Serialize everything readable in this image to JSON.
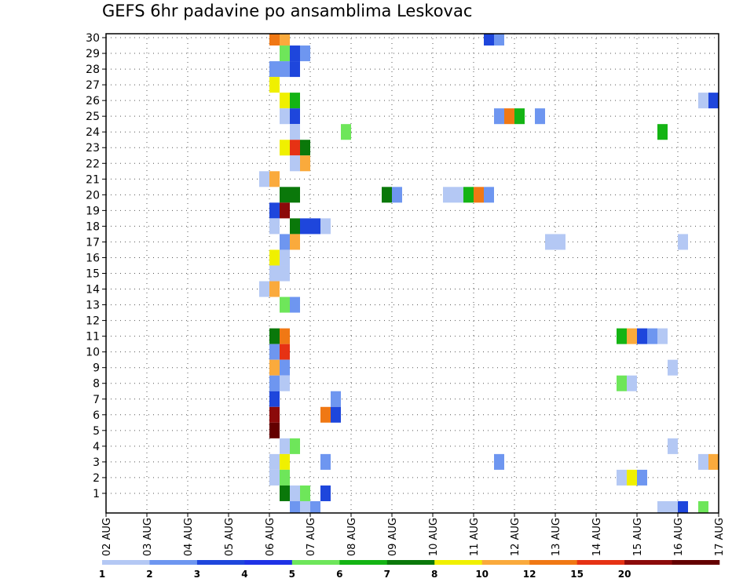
{
  "chart_data": {
    "type": "heatmap",
    "title": "GEFS 6hr padavine po ansamblima Leskovac",
    "xlabel": "",
    "ylabel": "",
    "x_ticks": [
      "02 AUG",
      "03 AUG",
      "04 AUG",
      "05 AUG",
      "06 AUG",
      "07 AUG",
      "08 AUG",
      "09 AUG",
      "10 AUG",
      "11 AUG",
      "12 AUG",
      "13 AUG",
      "14 AUG",
      "15 AUG",
      "16 AUG",
      "17 AUG"
    ],
    "x_unit": "6-hour step",
    "x_start": "02 AUG 00Z",
    "y_ticks": [
      1,
      2,
      3,
      4,
      5,
      6,
      7,
      8,
      9,
      10,
      11,
      12,
      13,
      14,
      15,
      16,
      17,
      18,
      19,
      20,
      21,
      22,
      23,
      24,
      25,
      26,
      27,
      28,
      29,
      30
    ],
    "ylim": [
      0,
      30
    ],
    "grid": true,
    "legend_position": "bottom",
    "colorbar": {
      "labels": [
        "1",
        "2",
        "3",
        "4",
        "5",
        "6",
        "7",
        "8",
        "10",
        "12",
        "15",
        "20"
      ],
      "colors": [
        "#b4c8f4",
        "#6e96f0",
        "#1e46dc",
        "#1e32e6",
        "#6ee65a",
        "#14b414",
        "#0a780a",
        "#f0f000",
        "#faaa3c",
        "#f07814",
        "#e63214",
        "#8c0a0a",
        "#640000"
      ]
    },
    "cells": [
      {
        "m": 30,
        "s": 16,
        "c": "#f07814"
      },
      {
        "m": 30,
        "s": 17,
        "c": "#faaa3c"
      },
      {
        "m": 30,
        "s": 37,
        "c": "#1e46dc"
      },
      {
        "m": 30,
        "s": 38,
        "c": "#6e96f0"
      },
      {
        "m": 29,
        "s": 17,
        "c": "#6ee65a"
      },
      {
        "m": 29,
        "s": 18,
        "c": "#1e46dc"
      },
      {
        "m": 29,
        "s": 19,
        "c": "#6e96f0"
      },
      {
        "m": 28,
        "s": 16,
        "c": "#6e96f0"
      },
      {
        "m": 28,
        "s": 17,
        "c": "#6e96f0"
      },
      {
        "m": 28,
        "s": 18,
        "c": "#1e46dc"
      },
      {
        "m": 27,
        "s": 16,
        "c": "#f0f000"
      },
      {
        "m": 26,
        "s": 17,
        "c": "#f0f000"
      },
      {
        "m": 26,
        "s": 18,
        "c": "#14b414"
      },
      {
        "m": 26,
        "s": 58,
        "c": "#b4c8f4"
      },
      {
        "m": 26,
        "s": 59,
        "c": "#1e46dc"
      },
      {
        "m": 25,
        "s": 17,
        "c": "#b4c8f4"
      },
      {
        "m": 25,
        "s": 18,
        "c": "#1e46dc"
      },
      {
        "m": 25,
        "s": 38,
        "c": "#6e96f0"
      },
      {
        "m": 25,
        "s": 39,
        "c": "#f07814"
      },
      {
        "m": 25,
        "s": 40,
        "c": "#14b414"
      },
      {
        "m": 25,
        "s": 42,
        "c": "#6e96f0"
      },
      {
        "m": 24,
        "s": 18,
        "c": "#b4c8f4"
      },
      {
        "m": 24,
        "s": 23,
        "c": "#6ee65a"
      },
      {
        "m": 24,
        "s": 54,
        "c": "#14b414"
      },
      {
        "m": 23,
        "s": 17,
        "c": "#f0f000"
      },
      {
        "m": 23,
        "s": 18,
        "c": "#e63214"
      },
      {
        "m": 23,
        "s": 19,
        "c": "#0a780a"
      },
      {
        "m": 22,
        "s": 18,
        "c": "#b4c8f4"
      },
      {
        "m": 22,
        "s": 19,
        "c": "#faaa3c"
      },
      {
        "m": 21,
        "s": 15,
        "c": "#b4c8f4"
      },
      {
        "m": 21,
        "s": 16,
        "c": "#faaa3c"
      },
      {
        "m": 20,
        "s": 17,
        "c": "#0a780a"
      },
      {
        "m": 20,
        "s": 18,
        "c": "#0a780a"
      },
      {
        "m": 20,
        "s": 27,
        "c": "#0a780a"
      },
      {
        "m": 20,
        "s": 28,
        "c": "#6e96f0"
      },
      {
        "m": 20,
        "s": 33,
        "c": "#b4c8f4"
      },
      {
        "m": 20,
        "s": 34,
        "c": "#b4c8f4"
      },
      {
        "m": 20,
        "s": 35,
        "c": "#14b414"
      },
      {
        "m": 20,
        "s": 36,
        "c": "#f07814"
      },
      {
        "m": 20,
        "s": 37,
        "c": "#6e96f0"
      },
      {
        "m": 19,
        "s": 16,
        "c": "#1e46dc"
      },
      {
        "m": 19,
        "s": 17,
        "c": "#8c0a0a"
      },
      {
        "m": 18,
        "s": 16,
        "c": "#b4c8f4"
      },
      {
        "m": 18,
        "s": 18,
        "c": "#0a780a"
      },
      {
        "m": 18,
        "s": 19,
        "c": "#1e46dc"
      },
      {
        "m": 18,
        "s": 20,
        "c": "#1e46dc"
      },
      {
        "m": 18,
        "s": 21,
        "c": "#b4c8f4"
      },
      {
        "m": 17,
        "s": 17,
        "c": "#6e96f0"
      },
      {
        "m": 17,
        "s": 18,
        "c": "#faaa3c"
      },
      {
        "m": 17,
        "s": 43,
        "c": "#b4c8f4"
      },
      {
        "m": 17,
        "s": 44,
        "c": "#b4c8f4"
      },
      {
        "m": 17,
        "s": 56,
        "c": "#b4c8f4"
      },
      {
        "m": 16,
        "s": 16,
        "c": "#f0f000"
      },
      {
        "m": 16,
        "s": 17,
        "c": "#b4c8f4"
      },
      {
        "m": 15,
        "s": 16,
        "c": "#b4c8f4"
      },
      {
        "m": 15,
        "s": 17,
        "c": "#b4c8f4"
      },
      {
        "m": 14,
        "s": 15,
        "c": "#b4c8f4"
      },
      {
        "m": 14,
        "s": 16,
        "c": "#faaa3c"
      },
      {
        "m": 13,
        "s": 17,
        "c": "#6ee65a"
      },
      {
        "m": 13,
        "s": 18,
        "c": "#6e96f0"
      },
      {
        "m": 11,
        "s": 16,
        "c": "#0a780a"
      },
      {
        "m": 11,
        "s": 17,
        "c": "#f07814"
      },
      {
        "m": 11,
        "s": 50,
        "c": "#14b414"
      },
      {
        "m": 11,
        "s": 51,
        "c": "#faaa3c"
      },
      {
        "m": 11,
        "s": 52,
        "c": "#1e46dc"
      },
      {
        "m": 11,
        "s": 53,
        "c": "#6e96f0"
      },
      {
        "m": 11,
        "s": 54,
        "c": "#b4c8f4"
      },
      {
        "m": 10,
        "s": 16,
        "c": "#6e96f0"
      },
      {
        "m": 10,
        "s": 17,
        "c": "#e63214"
      },
      {
        "m": 9,
        "s": 16,
        "c": "#faaa3c"
      },
      {
        "m": 9,
        "s": 17,
        "c": "#6e96f0"
      },
      {
        "m": 9,
        "s": 55,
        "c": "#b4c8f4"
      },
      {
        "m": 8,
        "s": 16,
        "c": "#6e96f0"
      },
      {
        "m": 8,
        "s": 17,
        "c": "#b4c8f4"
      },
      {
        "m": 8,
        "s": 50,
        "c": "#6ee65a"
      },
      {
        "m": 8,
        "s": 51,
        "c": "#b4c8f4"
      },
      {
        "m": 7,
        "s": 16,
        "c": "#1e46dc"
      },
      {
        "m": 7,
        "s": 22,
        "c": "#6e96f0"
      },
      {
        "m": 6,
        "s": 16,
        "c": "#8c0a0a"
      },
      {
        "m": 6,
        "s": 21,
        "c": "#f07814"
      },
      {
        "m": 6,
        "s": 22,
        "c": "#1e46dc"
      },
      {
        "m": 5,
        "s": 16,
        "c": "#640000"
      },
      {
        "m": 4,
        "s": 17,
        "c": "#b4c8f4"
      },
      {
        "m": 4,
        "s": 18,
        "c": "#6ee65a"
      },
      {
        "m": 4,
        "s": 55,
        "c": "#b4c8f4"
      },
      {
        "m": 3,
        "s": 16,
        "c": "#b4c8f4"
      },
      {
        "m": 3,
        "s": 17,
        "c": "#f0f000"
      },
      {
        "m": 3,
        "s": 21,
        "c": "#6e96f0"
      },
      {
        "m": 3,
        "s": 38,
        "c": "#6e96f0"
      },
      {
        "m": 3,
        "s": 58,
        "c": "#b4c8f4"
      },
      {
        "m": 3,
        "s": 59,
        "c": "#faaa3c"
      },
      {
        "m": 2,
        "s": 16,
        "c": "#b4c8f4"
      },
      {
        "m": 2,
        "s": 17,
        "c": "#6ee65a"
      },
      {
        "m": 2,
        "s": 50,
        "c": "#b4c8f4"
      },
      {
        "m": 2,
        "s": 51,
        "c": "#f0f000"
      },
      {
        "m": 2,
        "s": 52,
        "c": "#6e96f0"
      },
      {
        "m": 1,
        "s": 17,
        "c": "#0a780a"
      },
      {
        "m": 1,
        "s": 18,
        "c": "#b4c8f4"
      },
      {
        "m": 1,
        "s": 19,
        "c": "#6ee65a"
      },
      {
        "m": 1,
        "s": 21,
        "c": "#1e46dc"
      },
      {
        "m": 0,
        "s": 18,
        "c": "#6e96f0"
      },
      {
        "m": 0,
        "s": 19,
        "c": "#b4c8f4"
      },
      {
        "m": 0,
        "s": 20,
        "c": "#6e96f0"
      },
      {
        "m": 0,
        "s": 54,
        "c": "#b4c8f4"
      },
      {
        "m": 0,
        "s": 55,
        "c": "#b4c8f4"
      },
      {
        "m": 0,
        "s": 56,
        "c": "#1e46dc"
      },
      {
        "m": 0,
        "s": 58,
        "c": "#6ee65a"
      }
    ]
  }
}
